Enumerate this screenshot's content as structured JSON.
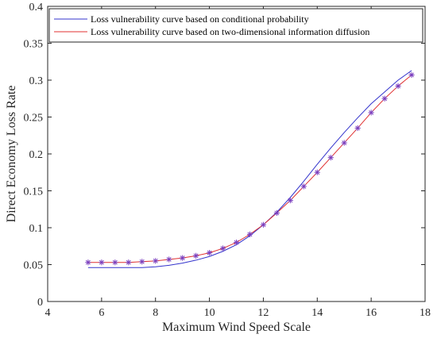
{
  "chart_data": {
    "type": "line",
    "xlabel": "Maximum Wind Speed Scale",
    "ylabel": "Direct Economy Loss Rate",
    "xlim": [
      4,
      18
    ],
    "ylim": [
      0,
      0.4
    ],
    "xticks": [
      4,
      6,
      8,
      10,
      12,
      14,
      16,
      18
    ],
    "yticks": [
      0,
      0.05,
      0.1,
      0.15,
      0.2,
      0.25,
      0.3,
      0.35,
      0.4
    ],
    "grid": false,
    "legend_position": "top-left",
    "x": [
      5.5,
      6.0,
      6.5,
      7.0,
      7.5,
      8.0,
      8.5,
      9.0,
      9.5,
      10.0,
      10.5,
      11.0,
      11.5,
      12.0,
      12.5,
      13.0,
      13.5,
      14.0,
      14.5,
      15.0,
      15.5,
      16.0,
      16.5,
      17.0,
      17.5
    ],
    "series": [
      {
        "name": "Loss vulnerability curve based on conditional probability",
        "color": "#3333cc",
        "marker": "none",
        "values": [
          0.046,
          0.046,
          0.046,
          0.046,
          0.046,
          0.047,
          0.049,
          0.052,
          0.056,
          0.061,
          0.068,
          0.077,
          0.089,
          0.104,
          0.121,
          0.141,
          0.163,
          0.186,
          0.208,
          0.229,
          0.249,
          0.268,
          0.284,
          0.3,
          0.313
        ]
      },
      {
        "name": "Loss vulnerability curve based on two-dimensional information diffusion",
        "color": "#e03030",
        "marker": "asterisk",
        "marker_color": "#7a3fbf",
        "values": [
          0.053,
          0.053,
          0.053,
          0.053,
          0.054,
          0.055,
          0.057,
          0.059,
          0.062,
          0.066,
          0.072,
          0.08,
          0.091,
          0.104,
          0.12,
          0.137,
          0.156,
          0.175,
          0.195,
          0.215,
          0.235,
          0.256,
          0.275,
          0.292,
          0.307
        ]
      }
    ]
  }
}
